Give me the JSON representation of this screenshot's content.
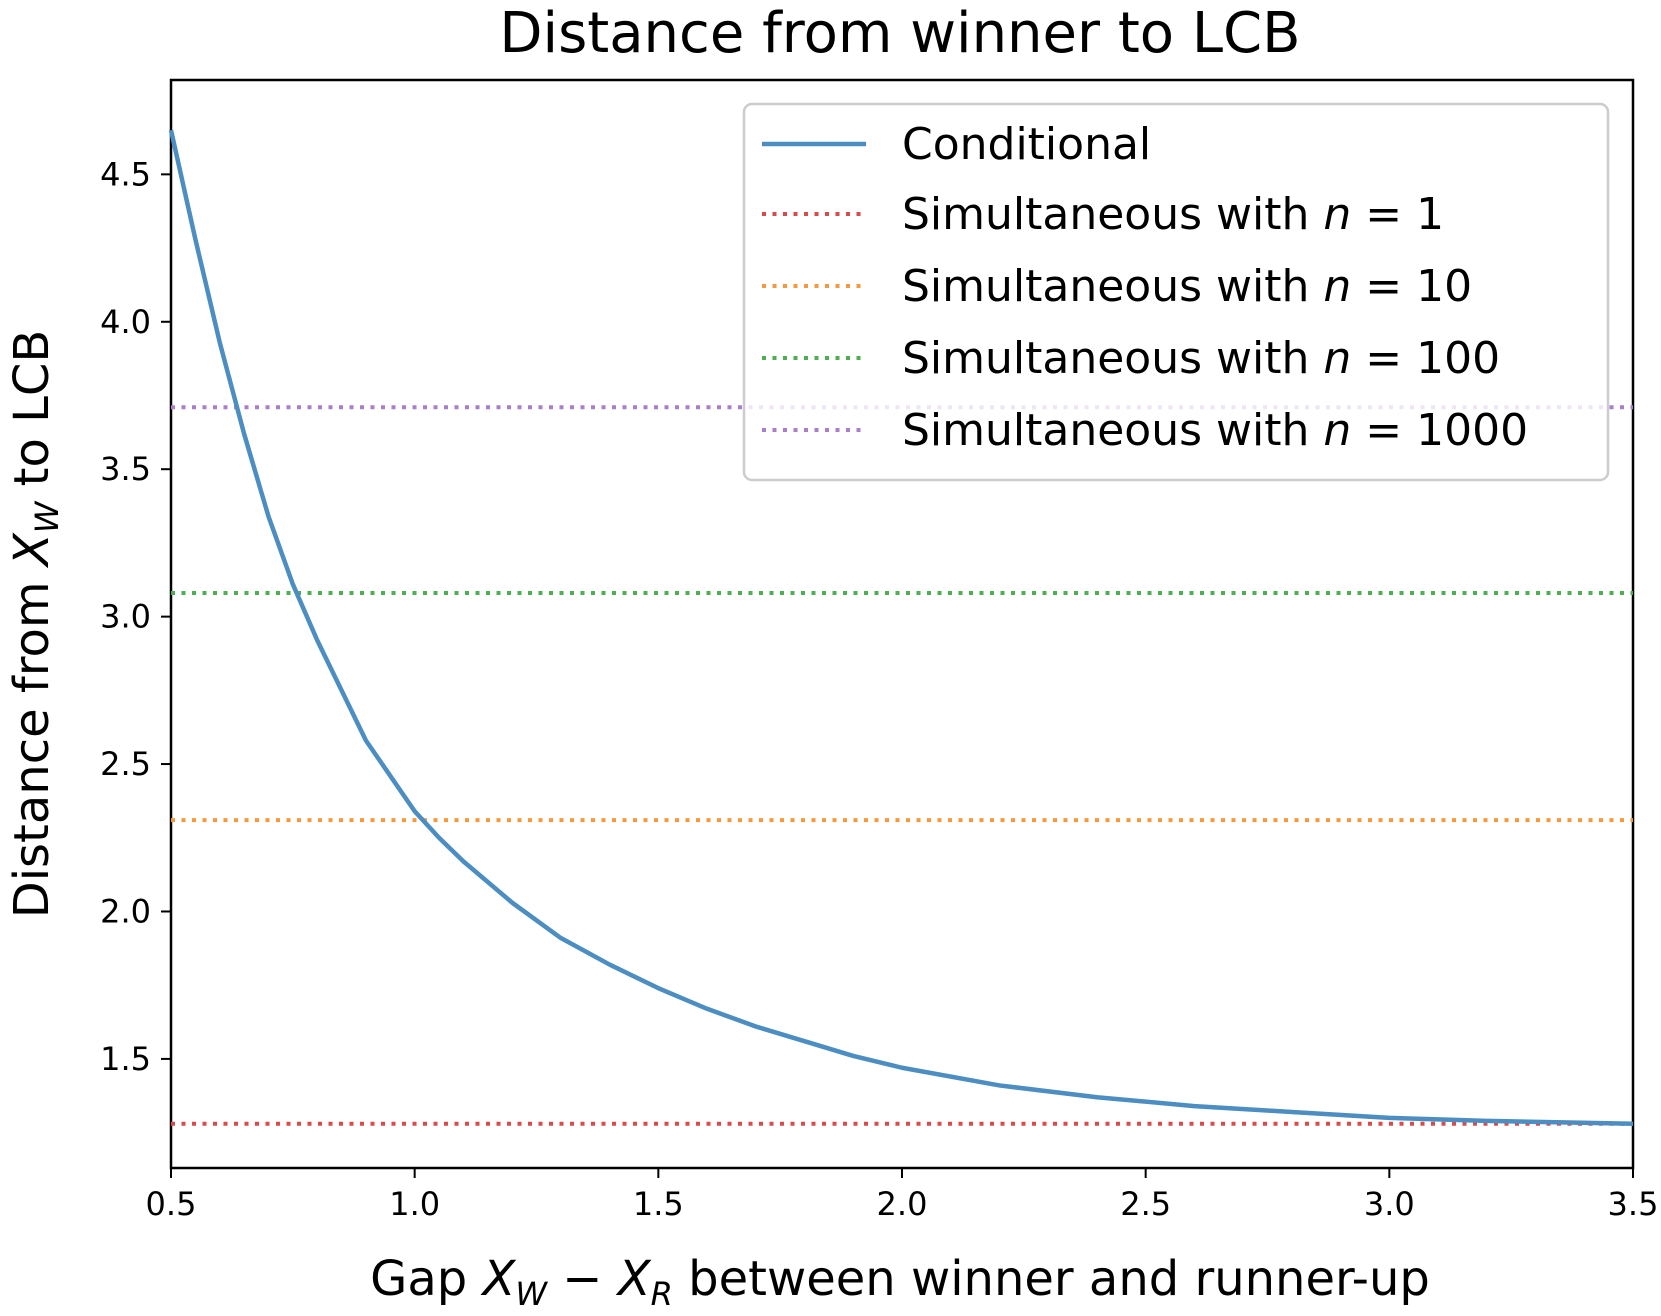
{
  "chart_data": {
    "type": "line",
    "title": "Distance from winner to LCB",
    "xlabel": {
      "pre": "Gap ",
      "var1": "X",
      "sub1": "W",
      "op": " − ",
      "var2": "X",
      "sub2": "R",
      "post": " between winner and runner-up"
    },
    "ylabel": {
      "pre": "Distance from ",
      "var": "X",
      "sub": "W",
      "post": " to LCB"
    },
    "xlim": [
      0.5,
      3.5
    ],
    "ylim": [
      1.13,
      4.82
    ],
    "xticks": [
      "0.5",
      "1.0",
      "1.5",
      "2.0",
      "2.5",
      "3.0",
      "3.5"
    ],
    "yticks": [
      "1.5",
      "2.0",
      "2.5",
      "3.0",
      "3.5",
      "4.0",
      "4.5"
    ],
    "grid": false,
    "legend_position": "top-right",
    "series": [
      {
        "name": "Conditional",
        "style": "solid",
        "color": "#4c8ec2",
        "x": [
          0.5,
          0.55,
          0.6,
          0.65,
          0.7,
          0.75,
          0.8,
          0.9,
          1.0,
          1.05,
          1.1,
          1.2,
          1.3,
          1.4,
          1.5,
          1.6,
          1.7,
          1.8,
          1.9,
          2.0,
          2.2,
          2.4,
          2.6,
          2.8,
          3.0,
          3.2,
          3.5
        ],
        "y": [
          4.65,
          4.28,
          3.93,
          3.62,
          3.34,
          3.11,
          2.92,
          2.58,
          2.34,
          2.25,
          2.17,
          2.03,
          1.91,
          1.82,
          1.74,
          1.67,
          1.61,
          1.56,
          1.51,
          1.47,
          1.41,
          1.37,
          1.34,
          1.32,
          1.3,
          1.29,
          1.28
        ]
      },
      {
        "name": "Simultaneous with n = 1",
        "label": {
          "pre": "Simultaneous with ",
          "var": "n",
          "eq": " = ",
          "val": "1"
        },
        "style": "dotted",
        "color": "#d94b4b",
        "y": 1.28
      },
      {
        "name": "Simultaneous with n = 10",
        "label": {
          "pre": "Simultaneous with ",
          "var": "n",
          "eq": " = ",
          "val": "10"
        },
        "style": "dotted",
        "color": "#f59a3c",
        "y": 2.31
      },
      {
        "name": "Simultaneous with n = 100",
        "label": {
          "pre": "Simultaneous with ",
          "var": "n",
          "eq": " = ",
          "val": "100"
        },
        "style": "dotted",
        "color": "#4caf50",
        "y": 3.08
      },
      {
        "name": "Simultaneous with n = 1000",
        "label": {
          "pre": "Simultaneous with ",
          "var": "n",
          "eq": " = ",
          "val": "1000"
        },
        "style": "dotted",
        "color": "#a97fcc",
        "y": 3.71
      }
    ]
  }
}
